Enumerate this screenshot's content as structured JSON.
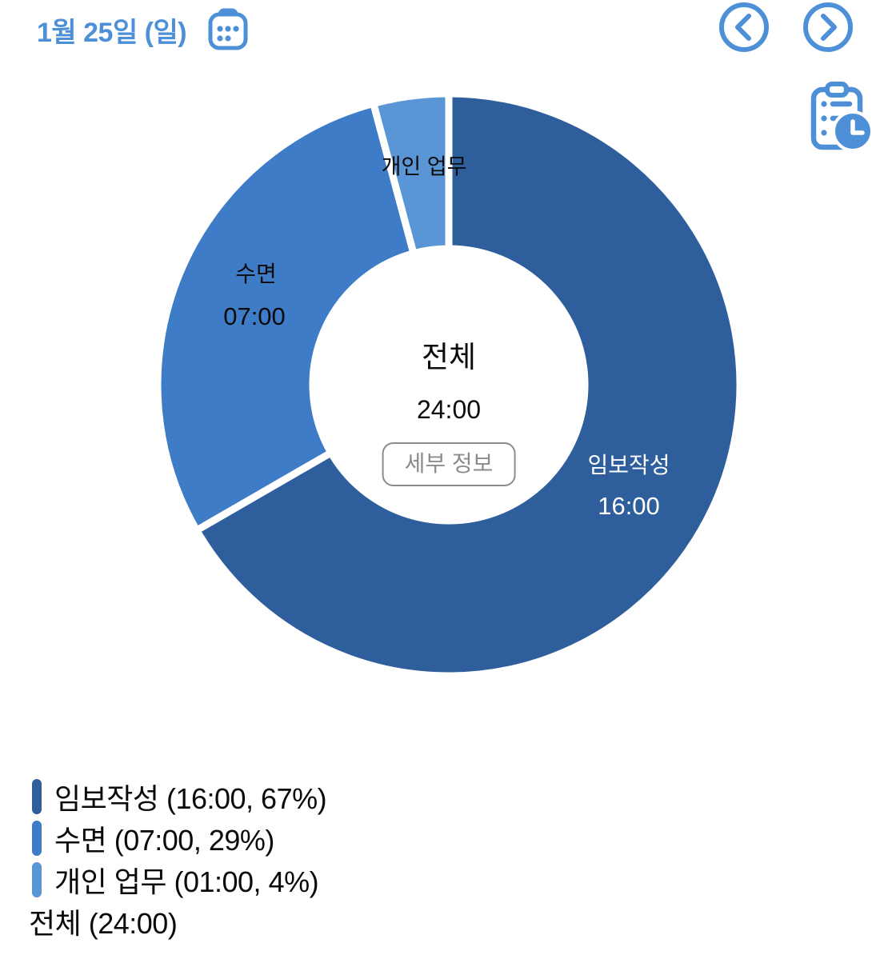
{
  "header": {
    "date_label": "1월 25일 (일)"
  },
  "colors": {
    "accent": "#4E90D7",
    "segment_dark": "#2E5F9C",
    "segment_medium": "#3E7CC7",
    "segment_light": "#5A96D5",
    "button_gray": "#8C8C8C"
  },
  "chart_data": {
    "type": "pie",
    "style": "donut",
    "direction": "clockwise",
    "start_angle_deg": 0,
    "total_hours": 24,
    "center_label": "전체",
    "center_value": "24:00",
    "detail_button_label": "세부 정보",
    "segments": [
      {
        "name": "임보작성",
        "time": "16:00",
        "hours": 16,
        "percent": 67,
        "color": "#2E5F9C",
        "label_on": "dark"
      },
      {
        "name": "수면",
        "time": "07:00",
        "hours": 7,
        "percent": 29,
        "color": "#3E7CC7",
        "label_on": "light"
      },
      {
        "name": "개인 업무",
        "time": "01:00",
        "hours": 1,
        "percent": 4,
        "color": "#5A96D5",
        "label_on": "light"
      }
    ]
  },
  "legend": {
    "items": [
      {
        "label": "임보작성 (16:00, 67%)",
        "color": "#2E5F9C"
      },
      {
        "label": "수면 (07:00, 29%)",
        "color": "#3E7CC7"
      },
      {
        "label": "개인 업무 (01:00, 4%)",
        "color": "#5A96D5"
      }
    ],
    "total_label": "전체 (24:00)"
  }
}
